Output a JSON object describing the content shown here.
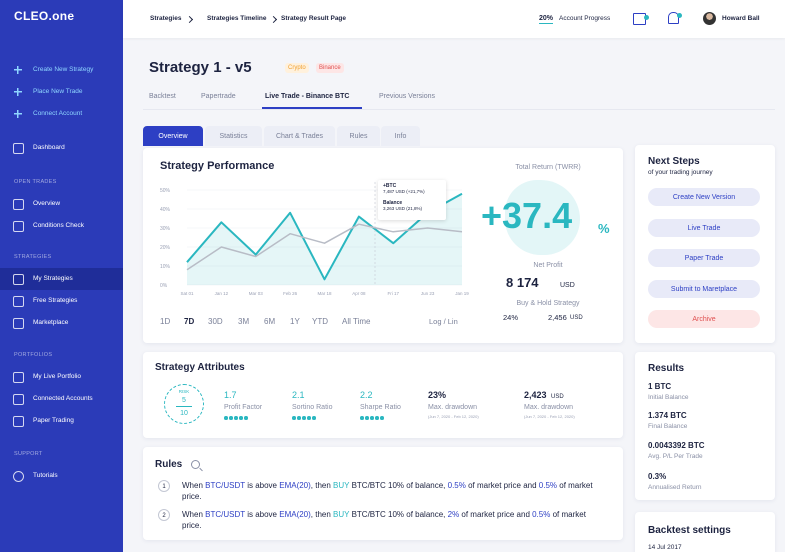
{
  "sidebar": {
    "logo": "CLEO.one",
    "actions": [
      "Create New Strategy",
      "Place New Trade",
      "Connect Account"
    ],
    "dashboard": "Dashboard",
    "sections": [
      {
        "title": "OPEN TRADES",
        "items": [
          "Overview",
          "Conditions Check"
        ]
      },
      {
        "title": "STRATEGIES",
        "items": [
          "My Strategies",
          "Free Strategies",
          "Marketplace"
        ]
      },
      {
        "title": "PORTFOLIOS",
        "items": [
          "My Live Portfolio",
          "Connected Accounts",
          "Paper Trading"
        ]
      },
      {
        "title": "SUPPORT",
        "items": [
          "Tutorials"
        ]
      }
    ]
  },
  "topbar": {
    "breadcrumb": [
      "Strategies",
      "Strategies Timeline",
      "Strategy Result Page"
    ],
    "progress": "20%",
    "progress_label": "Account Progress",
    "user": "Howard Ball"
  },
  "header": {
    "title": "Strategy 1 - v5",
    "tags": [
      "Crypto",
      "Binance"
    ],
    "tabs": [
      "Backtest",
      "Papertrade",
      "Live Trade - Binance BTC",
      "Previous Versions"
    ]
  },
  "subtabs": [
    "Overview",
    "Statistics",
    "Chart & Trades",
    "Rules",
    "Info"
  ],
  "performance": {
    "title": "Strategy Performance",
    "ranges": [
      "1D",
      "7D",
      "30D",
      "3M",
      "6M",
      "1Y",
      "YTD",
      "All Time"
    ],
    "scale": "Log / Lin",
    "tooltip": [
      "+BTC",
      "7,487 USD (+21,7%)",
      "Balance",
      "3,263 USD (21,8%)"
    ],
    "total_return_label": "Total Return (TWRR)",
    "total_return": "+37.4",
    "total_return_unit": "%",
    "net_profit_label": "Net Profit",
    "net_profit": "8 174",
    "net_profit_unit": "USD",
    "hold_label": "Buy & Hold Strategy",
    "hold_pct": "24%",
    "hold_value": "2,456",
    "hold_unit": "USD"
  },
  "chart_data": {
    "type": "line",
    "categories": [
      "Sat 01",
      "Jan 12",
      "Mar 03",
      "Feb 26",
      "Mar 18",
      "Apr 08",
      "Fri 17",
      "Jun 23",
      "Jan 19"
    ],
    "series": [
      {
        "name": "Strategy",
        "color": "#2ab7c0",
        "values": [
          12,
          33,
          16,
          38,
          3,
          36,
          22,
          38,
          48
        ]
      },
      {
        "name": "Buy & Hold",
        "color": "#b8bcc6",
        "values": [
          8,
          20,
          15,
          27,
          22,
          32,
          28,
          30,
          28
        ]
      }
    ],
    "ylim": [
      0,
      50
    ],
    "yticks": [
      {
        "value": 0,
        "label": "0%"
      },
      {
        "value": 10,
        "label": "10%"
      },
      {
        "value": 20,
        "label": "20%"
      },
      {
        "value": 30,
        "label": "30%"
      },
      {
        "value": 40,
        "label": "40%"
      },
      {
        "value": 50,
        "label": "50%"
      }
    ],
    "grid": true
  },
  "next_steps": {
    "title": "Next Steps",
    "subtitle": "of your trading journey",
    "buttons": [
      "Create New Version",
      "Live Trade",
      "Paper Trade",
      "Submit to Maretplace",
      "Archive"
    ]
  },
  "attributes": {
    "title": "Strategy Attributes",
    "risk": {
      "label": "RISK",
      "value": "5",
      "max": "10"
    },
    "items": [
      {
        "value": "1.7",
        "label": "Profit Factor"
      },
      {
        "value": "2.1",
        "label": "Sortino Ratio"
      },
      {
        "value": "2.2",
        "label": "Sharpe Ratio"
      },
      {
        "value": "23%",
        "label": "Max. drawdown",
        "note": "(Jun 7, 2020 - Feb 12, 2020)"
      },
      {
        "value": "2,423",
        "unit": "USD",
        "label": "Max. drawdown",
        "note": "(Jun 7, 2020 - Feb 12, 2020)"
      }
    ]
  },
  "results": {
    "title": "Results",
    "items": [
      {
        "value": "1 BTC",
        "label": "Initial Balance"
      },
      {
        "value": "1.374 BTC",
        "label": "Final Balance"
      },
      {
        "value": "0.0043392 BTC",
        "label": "Avg. P/L Per Trade"
      },
      {
        "value": "0.3%",
        "label": "Annualised Return"
      }
    ]
  },
  "backtest": {
    "title": "Backtest settings",
    "date": "14 Jul 2017"
  },
  "rules": {
    "title": "Rules",
    "items": [
      {
        "number": "1",
        "parts": [
          {
            "text": "When "
          },
          {
            "text": "BTC/USDT",
            "color": "#2d3fc4"
          },
          {
            "text": " is above "
          },
          {
            "text": "EMA(20)",
            "color": "#2d3fc4"
          },
          {
            "text": ", then "
          },
          {
            "text": "BUY",
            "color": "#2ab7c0"
          },
          {
            "text": " BTC/BTC 10% of balance, "
          },
          {
            "text": "0.5%",
            "color": "#2d3fc4"
          },
          {
            "text": " of market price and "
          },
          {
            "text": "0.5%",
            "color": "#2d3fc4"
          },
          {
            "text": " of market price."
          }
        ]
      },
      {
        "number": "2",
        "parts": [
          {
            "text": "When "
          },
          {
            "text": "BTC/USDT",
            "color": "#2d3fc4"
          },
          {
            "text": " is above "
          },
          {
            "text": "EMA(20)",
            "color": "#2d3fc4"
          },
          {
            "text": ", then "
          },
          {
            "text": "BUY",
            "color": "#2ab7c0"
          },
          {
            "text": " BTC/BTC 10% of balance, "
          },
          {
            "text": "2%",
            "color": "#2d3fc4"
          },
          {
            "text": " of market price and "
          },
          {
            "text": "0.5%",
            "color": "#2d3fc4"
          },
          {
            "text": " of market price."
          }
        ]
      }
    ]
  }
}
